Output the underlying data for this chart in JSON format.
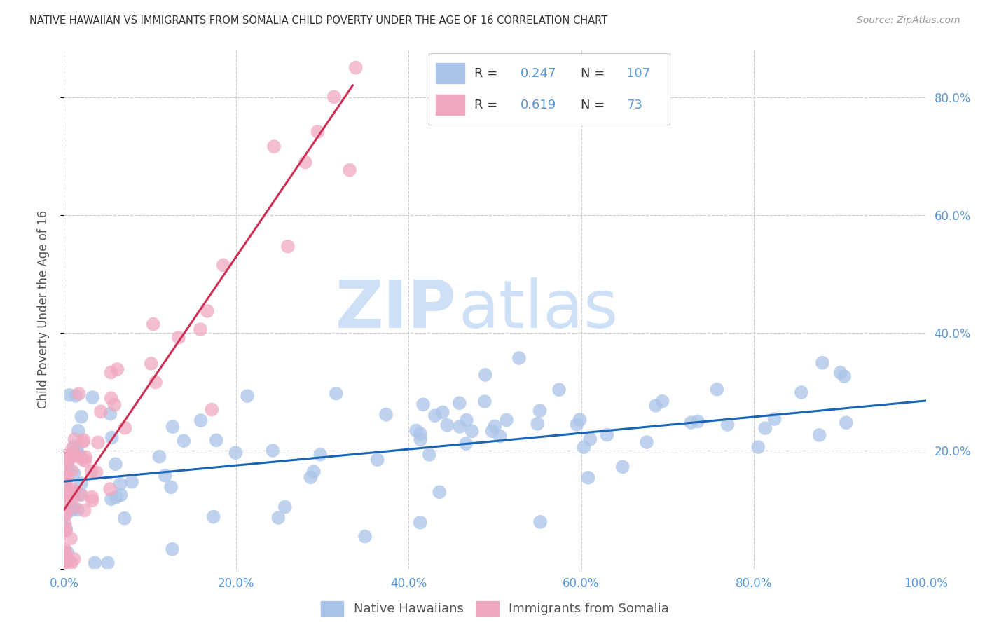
{
  "title": "NATIVE HAWAIIAN VS IMMIGRANTS FROM SOMALIA CHILD POVERTY UNDER THE AGE OF 16 CORRELATION CHART",
  "source": "Source: ZipAtlas.com",
  "ylabel": "Child Poverty Under the Age of 16",
  "watermark_zip": "ZIP",
  "watermark_atlas": "atlas",
  "legend_label1": "Native Hawaiians",
  "legend_label2": "Immigrants from Somalia",
  "R1": 0.247,
  "N1": 107,
  "R2": 0.619,
  "N2": 73,
  "color1": "#aac4e8",
  "color2": "#f0a8c0",
  "line_color1": "#1a65b5",
  "line_color2": "#cc3055",
  "title_color": "#333333",
  "source_color": "#999999",
  "ylabel_color": "#555555",
  "axis_tick_color": "#5599dd",
  "watermark_color": "#cde0f5",
  "background_color": "#ffffff",
  "grid_color": "#cccccc",
  "xlim": [
    0.0,
    1.0
  ],
  "ylim": [
    0.0,
    0.88
  ],
  "xtick_vals": [
    0.0,
    0.2,
    0.4,
    0.6,
    0.8,
    1.0
  ],
  "xtick_labels": [
    "0.0%",
    "20.0%",
    "40.0%",
    "60.0%",
    "80.0%",
    "100.0%"
  ],
  "ytick_vals": [
    0.0,
    0.2,
    0.4,
    0.6,
    0.8
  ],
  "ytick_labels": [
    "",
    "20.0%",
    "40.0%",
    "60.0%",
    "80.0%"
  ],
  "blue_line_x0": 0.0,
  "blue_line_x1": 1.0,
  "blue_line_y0": 0.148,
  "blue_line_y1": 0.285,
  "pink_line_x0": 0.0,
  "pink_line_x1": 0.335,
  "pink_line_y0": 0.1,
  "pink_line_y1": 0.82
}
